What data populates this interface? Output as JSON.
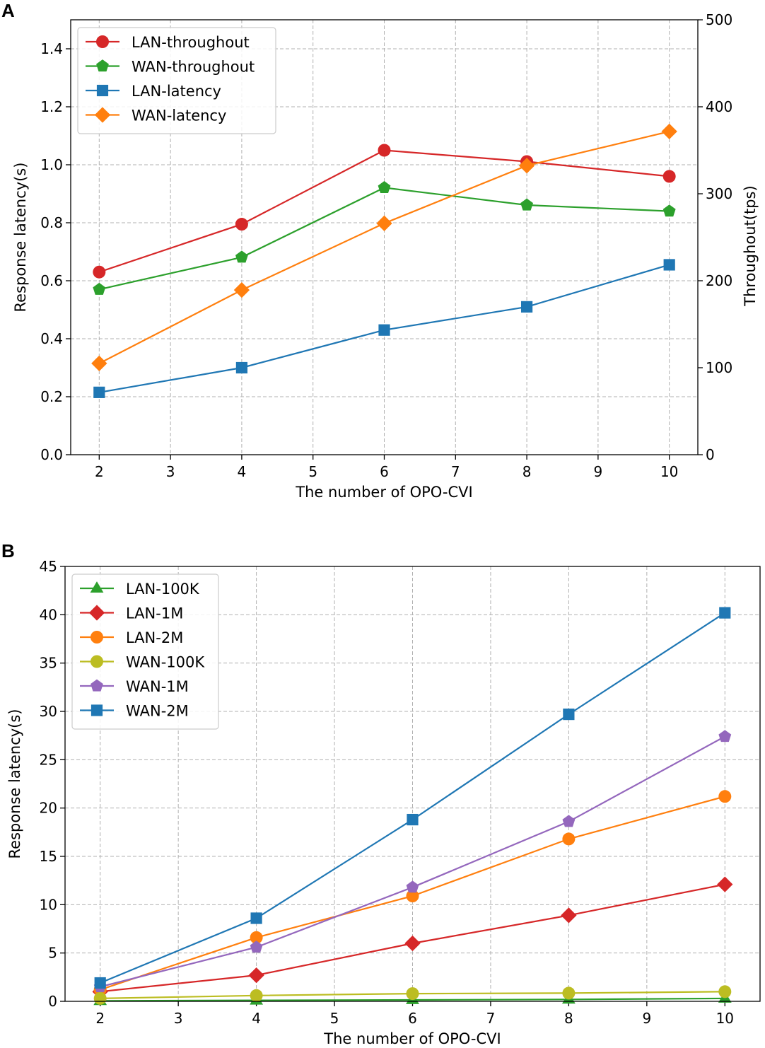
{
  "chart_data": [
    {
      "type": "line",
      "panel_label": "A",
      "xlabel": "The number of OPO-CVI",
      "ylabel": "Response latency(s)",
      "ylabel_right": "Throughout(tps)",
      "xlim": [
        1.6,
        10.4
      ],
      "ylim": [
        0,
        1.5
      ],
      "ylim_right": [
        0,
        500
      ],
      "xticks": [
        "2",
        "3",
        "4",
        "5",
        "6",
        "7",
        "8",
        "9",
        "10"
      ],
      "yticks": [
        "0.0",
        "0.2",
        "0.4",
        "0.6",
        "0.8",
        "1.0",
        "1.2",
        "1.4"
      ],
      "yticks_right": [
        "0",
        "100",
        "200",
        "300",
        "400",
        "500"
      ],
      "grid": true,
      "legend": "top-left",
      "x": [
        2,
        4,
        6,
        8,
        10
      ],
      "series": [
        {
          "name": "LAN-throughout",
          "axis": "right",
          "color": "#d62728",
          "marker": "circle",
          "values": [
            210,
            265,
            350,
            337,
            320
          ]
        },
        {
          "name": "WAN-throughout",
          "axis": "right",
          "color": "#2ca02c",
          "marker": "pentagon",
          "values": [
            190,
            227,
            307,
            287,
            280
          ]
        },
        {
          "name": "LAN-latency",
          "axis": "left",
          "color": "#1f77b4",
          "marker": "square",
          "values": [
            0.215,
            0.3,
            0.43,
            0.51,
            0.655
          ]
        },
        {
          "name": "WAN-latency",
          "axis": "left",
          "color": "#ff7f0e",
          "marker": "diamond",
          "values": [
            0.315,
            0.568,
            0.798,
            0.997,
            1.115
          ]
        }
      ]
    },
    {
      "type": "line",
      "panel_label": "B",
      "xlabel": "The number of OPO-CVI",
      "ylabel": "Response latency(s)",
      "xlim": [
        1.55,
        10.45
      ],
      "ylim": [
        0,
        45
      ],
      "xticks": [
        "2",
        "3",
        "4",
        "5",
        "6",
        "7",
        "8",
        "9",
        "10"
      ],
      "yticks": [
        "0",
        "5",
        "10",
        "15",
        "20",
        "25",
        "30",
        "35",
        "40",
        "45"
      ],
      "grid": true,
      "legend": "top-left",
      "x": [
        2,
        4,
        6,
        8,
        10
      ],
      "series": [
        {
          "name": "LAN-100K",
          "color": "#2ca02c",
          "marker": "triangle",
          "values": [
            0.05,
            0.1,
            0.15,
            0.2,
            0.3
          ]
        },
        {
          "name": "LAN-1M",
          "color": "#d62728",
          "marker": "diamond",
          "values": [
            1.0,
            2.7,
            6.0,
            8.9,
            12.1
          ]
        },
        {
          "name": "LAN-2M",
          "color": "#ff7f0e",
          "marker": "circle",
          "values": [
            1.2,
            6.6,
            10.9,
            16.8,
            21.2
          ]
        },
        {
          "name": "WAN-100K",
          "color": "#bcbd22",
          "marker": "circle",
          "values": [
            0.3,
            0.6,
            0.8,
            0.85,
            1.0
          ]
        },
        {
          "name": "WAN-1M",
          "color": "#9467bd",
          "marker": "pentagon",
          "values": [
            1.5,
            5.6,
            11.8,
            18.6,
            27.4
          ]
        },
        {
          "name": "WAN-2M",
          "color": "#1f77b4",
          "marker": "square",
          "values": [
            1.9,
            8.6,
            18.8,
            29.7,
            40.2
          ]
        }
      ]
    }
  ]
}
